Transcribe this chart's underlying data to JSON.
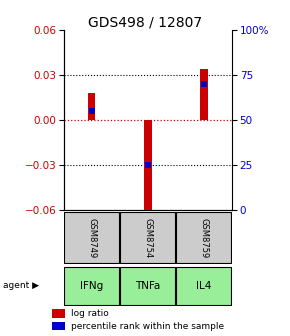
{
  "title": "GDS498 / 12807",
  "samples": [
    "GSM8749",
    "GSM8754",
    "GSM8759"
  ],
  "agents": [
    "IFNg",
    "TNFa",
    "IL4"
  ],
  "log_ratios": [
    0.018,
    -0.065,
    0.034
  ],
  "percentile_ranks": [
    0.55,
    0.25,
    0.7
  ],
  "ylim_left": [
    -0.06,
    0.06
  ],
  "yticks_left": [
    -0.06,
    -0.03,
    0,
    0.03,
    0.06
  ],
  "ytick_labels_right": [
    "0",
    "25",
    "50",
    "75",
    "100%"
  ],
  "bar_width": 0.13,
  "blue_bar_width": 0.1,
  "blue_bar_height": 0.004,
  "red_color": "#cc0000",
  "blue_color": "#0000cc",
  "zero_line_color": "#cc0000",
  "bg_color": "#ffffff",
  "gray_box_color": "#cccccc",
  "green_box_color": "#99ee99",
  "title_fontsize": 10,
  "tick_fontsize": 7.5,
  "legend_fontsize": 6.5,
  "sample_fontsize": 6.0,
  "agent_fontsize": 7.5
}
